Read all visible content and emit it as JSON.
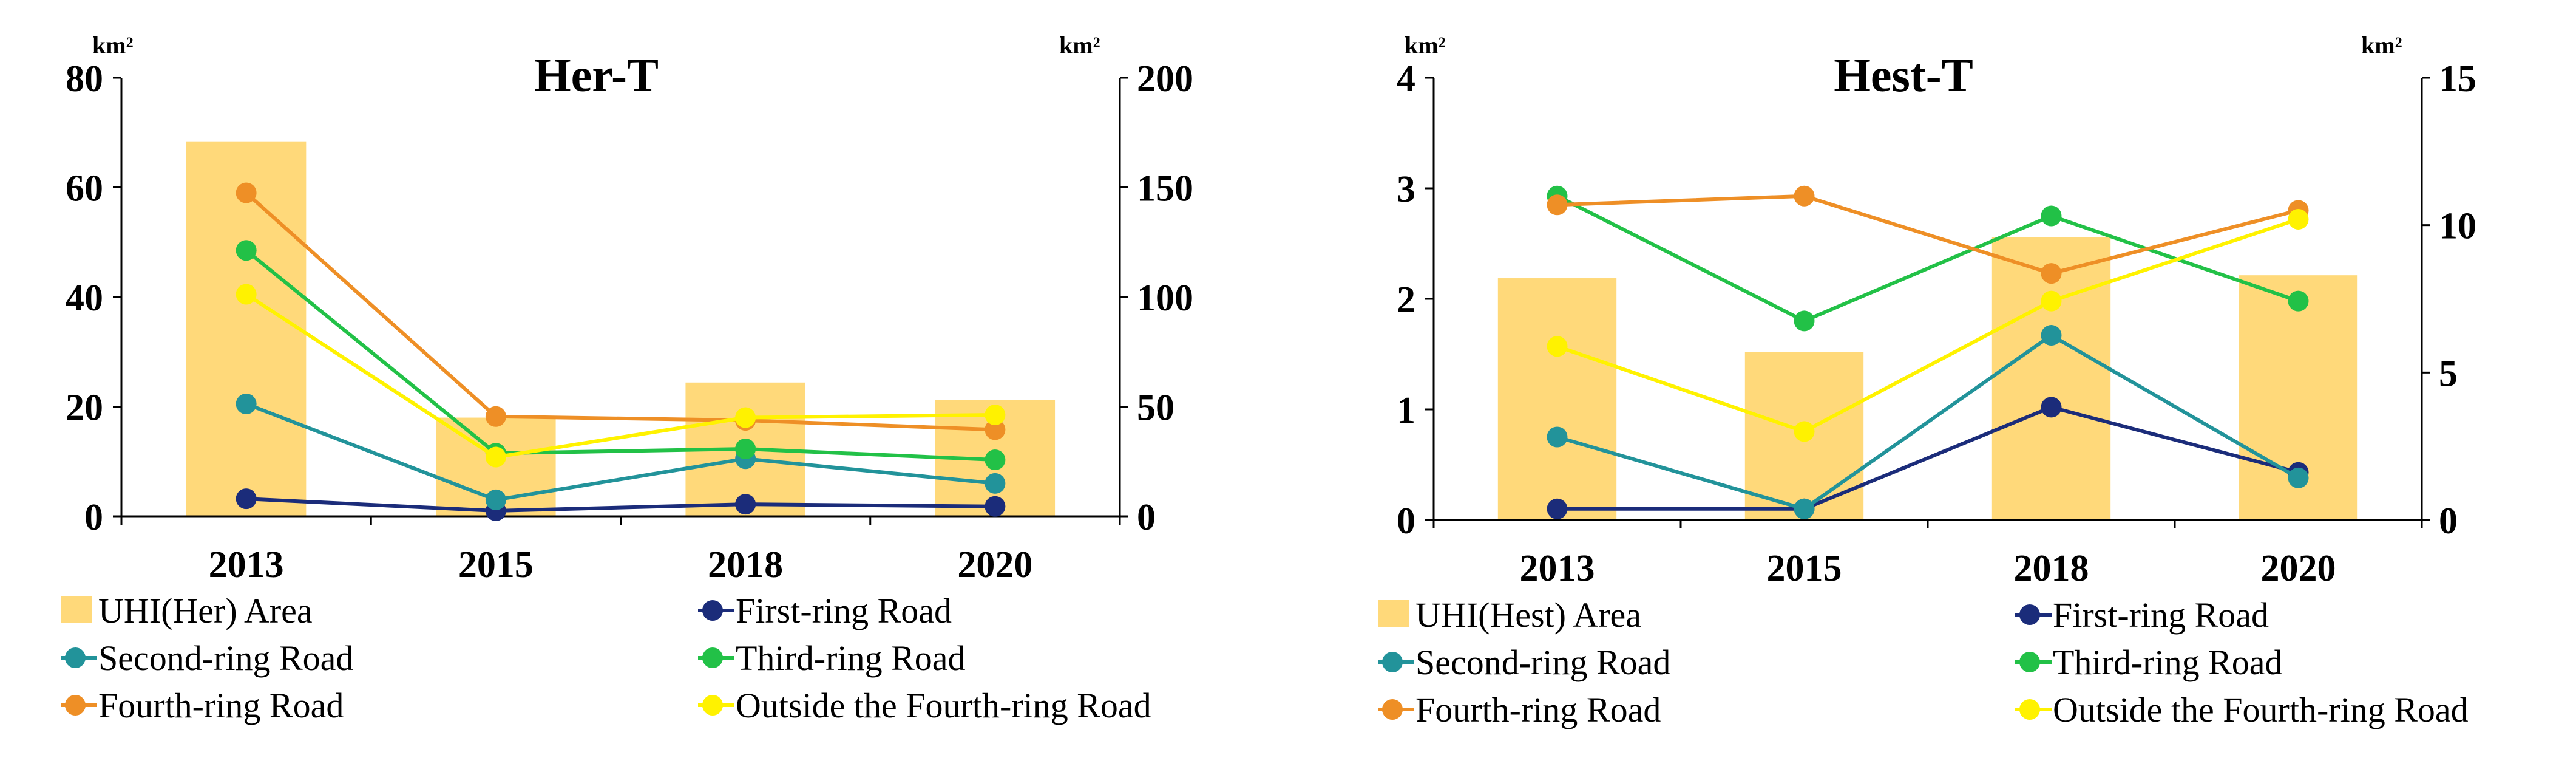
{
  "chart_data": [
    {
      "type": "bar",
      "title": "Her-T",
      "categories": [
        "2013",
        "2015",
        "2018",
        "2020"
      ],
      "y_left": {
        "unit": "km²",
        "range": [
          0,
          80
        ],
        "ticks": [
          "0",
          "20",
          "40",
          "60",
          "80"
        ]
      },
      "y_right": {
        "unit": "km²",
        "range": [
          0,
          200
        ],
        "ticks": [
          "0",
          "50",
          "100",
          "150",
          "200"
        ]
      },
      "bar_series": {
        "name": "UHI(Her) Area",
        "axis": "right",
        "color": "#FFD97A",
        "values": [
          171,
          45,
          61,
          53
        ]
      },
      "line_series": [
        {
          "name": "First-ring Road",
          "axis": "left",
          "color": "#1B2C7A",
          "values": [
            3.2,
            1.0,
            2.2,
            1.8
          ]
        },
        {
          "name": "Second-ring Road",
          "axis": "left",
          "color": "#22939A",
          "values": [
            20.5,
            3.0,
            10.5,
            6.0
          ]
        },
        {
          "name": "Third-ring Road",
          "axis": "left",
          "color": "#22C147",
          "values": [
            48.5,
            11.5,
            12.3,
            10.3
          ]
        },
        {
          "name": "Fourth-ring Road",
          "axis": "left",
          "color": "#EE8F26",
          "values": [
            59.0,
            18.2,
            17.5,
            15.8
          ]
        },
        {
          "name": "Outside the Fourth-ring Road",
          "axis": "left",
          "color": "#FFF200",
          "values": [
            40.5,
            10.8,
            18.0,
            18.5
          ]
        }
      ],
      "legend_placement": "bottom",
      "grid": false
    },
    {
      "type": "bar",
      "title": "Hest-T",
      "categories": [
        "2013",
        "2015",
        "2018",
        "2020"
      ],
      "y_left": {
        "unit": "km²",
        "range": [
          0,
          4
        ],
        "ticks": [
          "0",
          "1",
          "2",
          "3",
          "4"
        ]
      },
      "y_right": {
        "unit": "km²",
        "range": [
          0,
          15
        ],
        "ticks": [
          "0",
          "5",
          "10",
          "15"
        ]
      },
      "bar_series": {
        "name": "UHI(Hest) Area",
        "axis": "right",
        "color": "#FFD97A",
        "values": [
          8.2,
          5.7,
          9.6,
          8.3
        ]
      },
      "line_series": [
        {
          "name": "First-ring Road",
          "axis": "left",
          "color": "#1B2C7A",
          "values": [
            0.1,
            0.1,
            1.02,
            0.43
          ]
        },
        {
          "name": "Second-ring Road",
          "axis": "left",
          "color": "#22939A",
          "values": [
            0.75,
            0.1,
            1.67,
            0.38
          ]
        },
        {
          "name": "Third-ring Road",
          "axis": "left",
          "color": "#22C147",
          "values": [
            2.93,
            1.8,
            2.75,
            1.98
          ]
        },
        {
          "name": "Fourth-ring Road",
          "axis": "left",
          "color": "#EE8F26",
          "values": [
            2.85,
            2.93,
            2.23,
            2.8
          ]
        },
        {
          "name": "Outside the Fourth-ring Road",
          "axis": "left",
          "color": "#FFF200",
          "values": [
            1.57,
            0.8,
            1.98,
            2.72
          ]
        }
      ],
      "legend_placement": "bottom",
      "grid": false
    }
  ]
}
